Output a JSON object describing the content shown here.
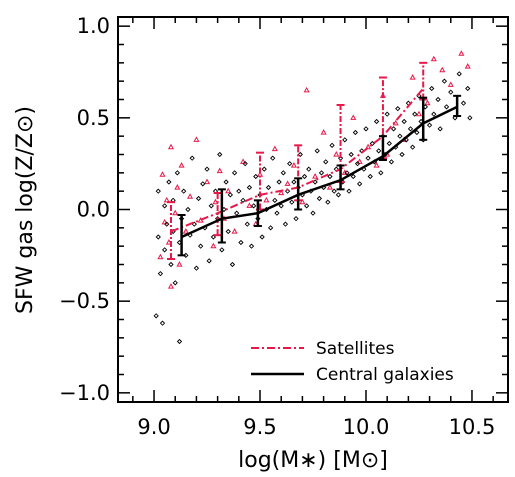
{
  "chart_data": {
    "type": "scatter",
    "xlabel": "log(M∗) [M⊙]",
    "ylabel": "SFW gas log(Z/Z⊙)",
    "xlim": [
      8.83,
      10.67
    ],
    "ylim": [
      -1.05,
      1.05
    ],
    "xticks": [
      9.0,
      9.5,
      10.0,
      10.5
    ],
    "xtick_labels": [
      "9.0",
      "9.5",
      "10.0",
      "10.5"
    ],
    "yticks": [
      -1.0,
      -0.5,
      0.0,
      0.5,
      1.0
    ],
    "ytick_labels": [
      "−1.0",
      "−0.5",
      "0.0",
      "0.5",
      "1.0"
    ],
    "grid": false,
    "legend_position": "bottom-right",
    "legend": [
      {
        "label": "Satellites",
        "style": "dash-dot",
        "color": "#e8184a"
      },
      {
        "label": "Central galaxies",
        "style": "solid",
        "color": "#000000"
      }
    ],
    "series": [
      {
        "name": "Satellites",
        "kind": "median-line",
        "color": "#e8184a",
        "x": [
          9.08,
          9.3,
          9.5,
          9.68,
          9.88,
          10.08,
          10.27
        ],
        "y": [
          -0.12,
          -0.02,
          0.08,
          0.12,
          0.22,
          0.4,
          0.66
        ],
        "err_low": [
          -0.27,
          -0.14,
          0.0,
          0.05,
          0.15,
          0.28,
          0.6
        ],
        "err_high": [
          0.04,
          0.09,
          0.31,
          0.35,
          0.57,
          0.72,
          0.8
        ]
      },
      {
        "name": "Central galaxies",
        "kind": "median-line",
        "color": "#000000",
        "x": [
          9.13,
          9.32,
          9.49,
          9.68,
          9.88,
          10.08,
          10.27,
          10.43
        ],
        "y": [
          -0.15,
          -0.05,
          -0.02,
          0.08,
          0.16,
          0.29,
          0.47,
          0.56
        ],
        "err_low": [
          -0.25,
          -0.18,
          -0.09,
          0.0,
          0.11,
          0.27,
          0.38,
          0.51
        ],
        "err_high": [
          -0.03,
          0.11,
          0.05,
          0.17,
          0.24,
          0.4,
          0.61,
          0.62
        ]
      },
      {
        "name": "Satellites",
        "kind": "points",
        "color": "#e8184a",
        "marker": "triangle",
        "points": [
          [
            9.03,
            -0.26
          ],
          [
            9.04,
            0.19
          ],
          [
            9.05,
            -0.07
          ],
          [
            9.06,
            0.05
          ],
          [
            9.07,
            -0.18
          ],
          [
            9.08,
            0.34
          ],
          [
            9.08,
            -0.42
          ],
          [
            9.1,
            -0.02
          ],
          [
            9.11,
            0.12
          ],
          [
            9.12,
            -0.3
          ],
          [
            9.13,
            0.24
          ],
          [
            9.15,
            -0.12
          ],
          [
            9.17,
            0.07
          ],
          [
            9.2,
            0.38
          ],
          [
            9.22,
            -0.06
          ],
          [
            9.25,
            0.15
          ],
          [
            9.28,
            -0.2
          ],
          [
            9.29,
            0.04
          ],
          [
            9.31,
            0.21
          ],
          [
            9.33,
            -0.05
          ],
          [
            9.35,
            0.1
          ],
          [
            9.38,
            -0.12
          ],
          [
            9.42,
            0.26
          ],
          [
            9.45,
            0.02
          ],
          [
            9.48,
            -0.08
          ],
          [
            9.5,
            0.19
          ],
          [
            9.53,
            0.05
          ],
          [
            9.57,
            0.33
          ],
          [
            9.6,
            0.09
          ],
          [
            9.63,
            0.14
          ],
          [
            9.66,
            0.24
          ],
          [
            9.7,
            0.04
          ],
          [
            9.72,
            0.65
          ],
          [
            9.76,
            0.18
          ],
          [
            9.8,
            0.42
          ],
          [
            9.83,
            0.12
          ],
          [
            9.86,
            0.3
          ],
          [
            9.9,
            0.2
          ],
          [
            9.94,
            0.5
          ],
          [
            9.97,
            0.26
          ],
          [
            10.01,
            0.34
          ],
          [
            10.05,
            0.24
          ],
          [
            10.08,
            0.62
          ],
          [
            10.1,
            0.3
          ],
          [
            10.14,
            0.47
          ],
          [
            10.18,
            0.38
          ],
          [
            10.22,
            0.72
          ],
          [
            10.25,
            0.52
          ],
          [
            10.29,
            0.58
          ],
          [
            10.32,
            0.82
          ],
          [
            10.36,
            0.76
          ],
          [
            10.4,
            0.68
          ],
          [
            10.45,
            0.85
          ],
          [
            10.48,
            0.78
          ]
        ]
      },
      {
        "name": "Central galaxies",
        "kind": "points",
        "color": "#000000",
        "marker": "diamond",
        "points": [
          [
            9.01,
            -0.58
          ],
          [
            9.02,
            -0.15
          ],
          [
            9.02,
            0.1
          ],
          [
            9.03,
            -0.35
          ],
          [
            9.04,
            -0.62
          ],
          [
            9.05,
            0.02
          ],
          [
            9.05,
            -0.22
          ],
          [
            9.06,
            -0.08
          ],
          [
            9.07,
            0.15
          ],
          [
            9.08,
            -0.3
          ],
          [
            9.09,
            -0.12
          ],
          [
            9.09,
            0.05
          ],
          [
            9.1,
            -0.4
          ],
          [
            9.11,
            0.2
          ],
          [
            9.12,
            -0.18
          ],
          [
            9.12,
            -0.72
          ],
          [
            9.13,
            -0.05
          ],
          [
            9.14,
            0.1
          ],
          [
            9.15,
            -0.25
          ],
          [
            9.16,
            0.0
          ],
          [
            9.17,
            -0.14
          ],
          [
            9.18,
            0.28
          ],
          [
            9.19,
            -0.08
          ],
          [
            9.2,
            -0.32
          ],
          [
            9.21,
            0.06
          ],
          [
            9.22,
            -0.2
          ],
          [
            9.23,
            0.14
          ],
          [
            9.24,
            -0.1
          ],
          [
            9.25,
            0.22
          ],
          [
            9.26,
            -0.28
          ],
          [
            9.27,
            0.02
          ],
          [
            9.28,
            -0.15
          ],
          [
            9.29,
            0.1
          ],
          [
            9.3,
            -0.05
          ],
          [
            9.31,
            0.3
          ],
          [
            9.32,
            -0.22
          ],
          [
            9.33,
            0.0
          ],
          [
            9.34,
            0.15
          ],
          [
            9.35,
            -0.12
          ],
          [
            9.36,
            0.08
          ],
          [
            9.37,
            -0.3
          ],
          [
            9.38,
            0.2
          ],
          [
            9.39,
            -0.02
          ],
          [
            9.4,
            0.1
          ],
          [
            9.41,
            -0.18
          ],
          [
            9.42,
            0.05
          ],
          [
            9.43,
            0.25
          ],
          [
            9.44,
            -0.08
          ],
          [
            9.45,
            0.12
          ],
          [
            9.46,
            -0.2
          ],
          [
            9.47,
            0.02
          ],
          [
            9.48,
            0.18
          ],
          [
            9.49,
            -0.05
          ],
          [
            9.5,
            0.08
          ],
          [
            9.51,
            -0.15
          ],
          [
            9.52,
            0.22
          ],
          [
            9.53,
            0.0
          ],
          [
            9.54,
            0.12
          ],
          [
            9.55,
            -0.1
          ],
          [
            9.56,
            0.28
          ],
          [
            9.57,
            0.05
          ],
          [
            9.58,
            -0.02
          ],
          [
            9.59,
            0.15
          ],
          [
            9.6,
            0.02
          ],
          [
            9.61,
            0.2
          ],
          [
            9.62,
            -0.08
          ],
          [
            9.63,
            0.1
          ],
          [
            9.64,
            0.25
          ],
          [
            9.65,
            0.04
          ],
          [
            9.66,
            0.15
          ],
          [
            9.67,
            -0.05
          ],
          [
            9.68,
            0.12
          ],
          [
            9.69,
            0.3
          ],
          [
            9.7,
            0.08
          ],
          [
            9.71,
            0.18
          ],
          [
            9.72,
            0.02
          ],
          [
            9.73,
            0.22
          ],
          [
            9.74,
            0.1
          ],
          [
            9.75,
            -0.02
          ],
          [
            9.76,
            0.15
          ],
          [
            9.77,
            0.32
          ],
          [
            9.78,
            0.06
          ],
          [
            9.79,
            0.2
          ],
          [
            9.8,
            0.12
          ],
          [
            9.81,
            0.26
          ],
          [
            9.82,
            0.04
          ],
          [
            9.83,
            0.18
          ],
          [
            9.84,
            0.35
          ],
          [
            9.85,
            0.1
          ],
          [
            9.86,
            0.22
          ],
          [
            9.87,
            0.08
          ],
          [
            9.88,
            0.28
          ],
          [
            9.89,
            0.15
          ],
          [
            9.9,
            0.38
          ],
          [
            9.91,
            0.2
          ],
          [
            9.92,
            0.1
          ],
          [
            9.93,
            0.3
          ],
          [
            9.94,
            0.18
          ],
          [
            9.95,
            0.42
          ],
          [
            9.96,
            0.25
          ],
          [
            9.97,
            0.14
          ],
          [
            9.98,
            0.32
          ],
          [
            9.99,
            0.22
          ],
          [
            10.0,
            0.44
          ],
          [
            10.01,
            0.28
          ],
          [
            10.02,
            0.18
          ],
          [
            10.03,
            0.36
          ],
          [
            10.04,
            0.26
          ],
          [
            10.05,
            0.48
          ],
          [
            10.06,
            0.32
          ],
          [
            10.07,
            0.2
          ],
          [
            10.08,
            0.4
          ],
          [
            10.09,
            0.3
          ],
          [
            10.1,
            0.52
          ],
          [
            10.11,
            0.36
          ],
          [
            10.12,
            0.26
          ],
          [
            10.13,
            0.44
          ],
          [
            10.14,
            0.34
          ],
          [
            10.15,
            0.55
          ],
          [
            10.16,
            0.4
          ],
          [
            10.17,
            0.3
          ],
          [
            10.18,
            0.48
          ],
          [
            10.19,
            0.38
          ],
          [
            10.2,
            0.58
          ],
          [
            10.21,
            0.44
          ],
          [
            10.22,
            0.34
          ],
          [
            10.23,
            0.52
          ],
          [
            10.24,
            0.42
          ],
          [
            10.25,
            0.62
          ],
          [
            10.26,
            0.48
          ],
          [
            10.27,
            0.38
          ],
          [
            10.28,
            0.56
          ],
          [
            10.3,
            0.46
          ],
          [
            10.31,
            0.66
          ],
          [
            10.32,
            0.52
          ],
          [
            10.34,
            0.6
          ],
          [
            10.35,
            0.44
          ],
          [
            10.37,
            0.7
          ],
          [
            10.38,
            0.56
          ],
          [
            10.4,
            0.64
          ],
          [
            10.42,
            0.5
          ],
          [
            10.44,
            0.74
          ],
          [
            10.46,
            0.58
          ],
          [
            10.48,
            0.66
          ],
          [
            10.49,
            0.5
          ]
        ]
      }
    ]
  }
}
